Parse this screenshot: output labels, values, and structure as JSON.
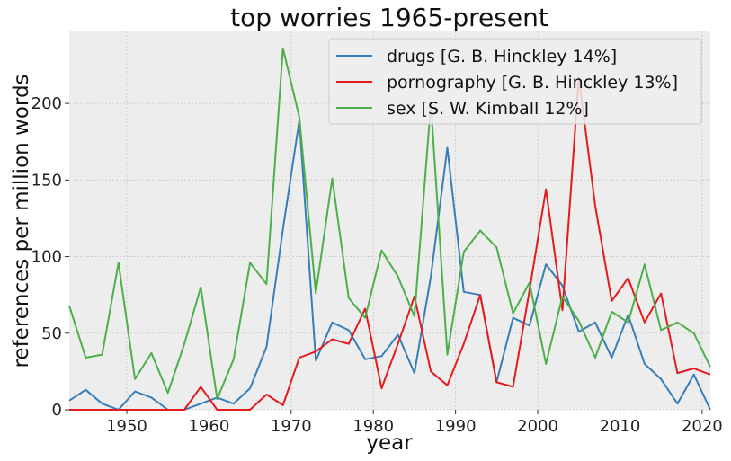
{
  "chart_data": {
    "type": "line",
    "title": "top worries 1965-present",
    "xlabel": "year",
    "ylabel": "references per million words",
    "xlim": [
      1943,
      2021
    ],
    "ylim": [
      0,
      247
    ],
    "xticks": [
      1950,
      1960,
      1970,
      1980,
      1990,
      2000,
      2010,
      2020
    ],
    "yticks": [
      0,
      50,
      100,
      150,
      200
    ],
    "grid": true,
    "legend_position": "top-right",
    "x": [
      1943,
      1945,
      1947,
      1949,
      1951,
      1953,
      1955,
      1957,
      1959,
      1961,
      1963,
      1965,
      1967,
      1969,
      1971,
      1973,
      1975,
      1977,
      1979,
      1981,
      1983,
      1985,
      1987,
      1989,
      1991,
      1993,
      1995,
      1997,
      1999,
      2001,
      2003,
      2005,
      2007,
      2009,
      2011,
      2013,
      2015,
      2017,
      2019,
      2021
    ],
    "series": [
      {
        "name": "drugs [G. B. Hinckley 14%]",
        "color": "#377eb8",
        "values": [
          6,
          13,
          4,
          0,
          12,
          8,
          0,
          0,
          4,
          8,
          4,
          14,
          41,
          118,
          189,
          32,
          57,
          52,
          33,
          35,
          49,
          24,
          87,
          171,
          77,
          75,
          18,
          60,
          55,
          95,
          81,
          51,
          57,
          34,
          62,
          30,
          20,
          4,
          23,
          0
        ]
      },
      {
        "name": "pornography [G. B. Hinckley 13%]",
        "color": "#e41a1c",
        "values": [
          0,
          0,
          0,
          0,
          0,
          0,
          0,
          0,
          15,
          0,
          0,
          0,
          10,
          3,
          34,
          38,
          46,
          43,
          66,
          14,
          43,
          74,
          25,
          16,
          43,
          75,
          18,
          15,
          78,
          144,
          65,
          217,
          133,
          71,
          86,
          57,
          76,
          24,
          27,
          23
        ]
      },
      {
        "name": "sex [S. W. Kimball 12%]",
        "color": "#4daf4a",
        "values": [
          68,
          34,
          36,
          96,
          20,
          37,
          11,
          43,
          80,
          7,
          33,
          96,
          82,
          236,
          191,
          76,
          151,
          73,
          60,
          104,
          87,
          61,
          200,
          36,
          103,
          117,
          106,
          63,
          83,
          30,
          74,
          58,
          34,
          64,
          57,
          95,
          52,
          57,
          50,
          28
        ]
      }
    ]
  }
}
